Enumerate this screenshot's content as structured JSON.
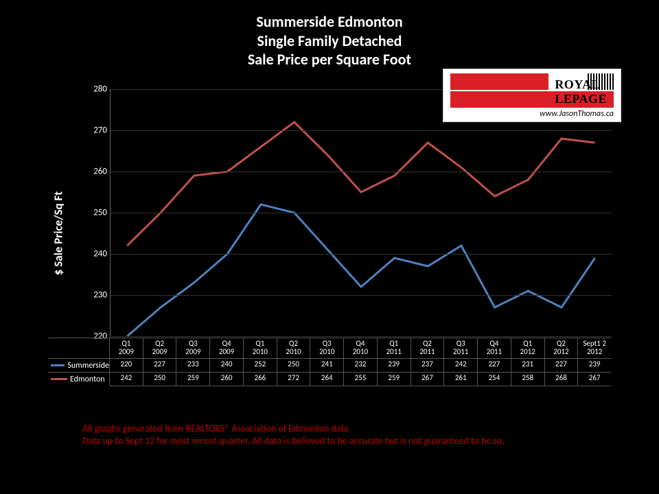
{
  "title": {
    "line1": "Summerside Edmonton",
    "line2": "Single Family Detached",
    "line3": "Sale Price per Square Foot",
    "fontsize": 22,
    "color": "#ffffff"
  },
  "logo": {
    "brand": "ROYAL LEPAGE",
    "site": "www.JasonThomas.ca",
    "bar_color": "#d92027"
  },
  "chart": {
    "type": "line",
    "background_color": "#000000",
    "grid_color": "#333333",
    "text_color": "#ffffff",
    "ylabel": "$ Sale Price/Sq Ft",
    "ylabel_fontsize": 17,
    "ylim": [
      220,
      280
    ],
    "ytick_step": 10,
    "yticks": [
      220,
      230,
      240,
      250,
      260,
      270,
      280
    ],
    "tick_fontsize": 13,
    "categories": [
      "Q1 2009",
      "Q2 2009",
      "Q3 2009",
      "Q4 2009",
      "Q1 2010",
      "Q2 2010",
      "Q3 2010",
      "Q4 2010",
      "Q1 2011",
      "Q2 2011",
      "Q3 2011",
      "Q4 2011",
      "Q1 2012",
      "Q2 2012",
      "Sept1 2 2012"
    ],
    "category_fontsize": 11,
    "line_width": 3,
    "series": [
      {
        "name": "Summerside",
        "color": "#4f81bd",
        "values": [
          220,
          227,
          233,
          240,
          252,
          250,
          241,
          232,
          239,
          237,
          242,
          227,
          231,
          227,
          239
        ]
      },
      {
        "name": "Edmonton",
        "color": "#c0504d",
        "values": [
          242,
          250,
          259,
          260,
          266,
          272,
          264,
          255,
          259,
          267,
          261,
          254,
          258,
          268,
          267
        ]
      }
    ]
  },
  "footnote": {
    "line1": "All graphs generated from REALTORS® Association of Edmonton data",
    "line2": "Data up to Sept 12 for most recent quarter. All data is believed to be accurate but is not guaranteed to be so.",
    "color": "#c00000",
    "fontsize": 14
  }
}
